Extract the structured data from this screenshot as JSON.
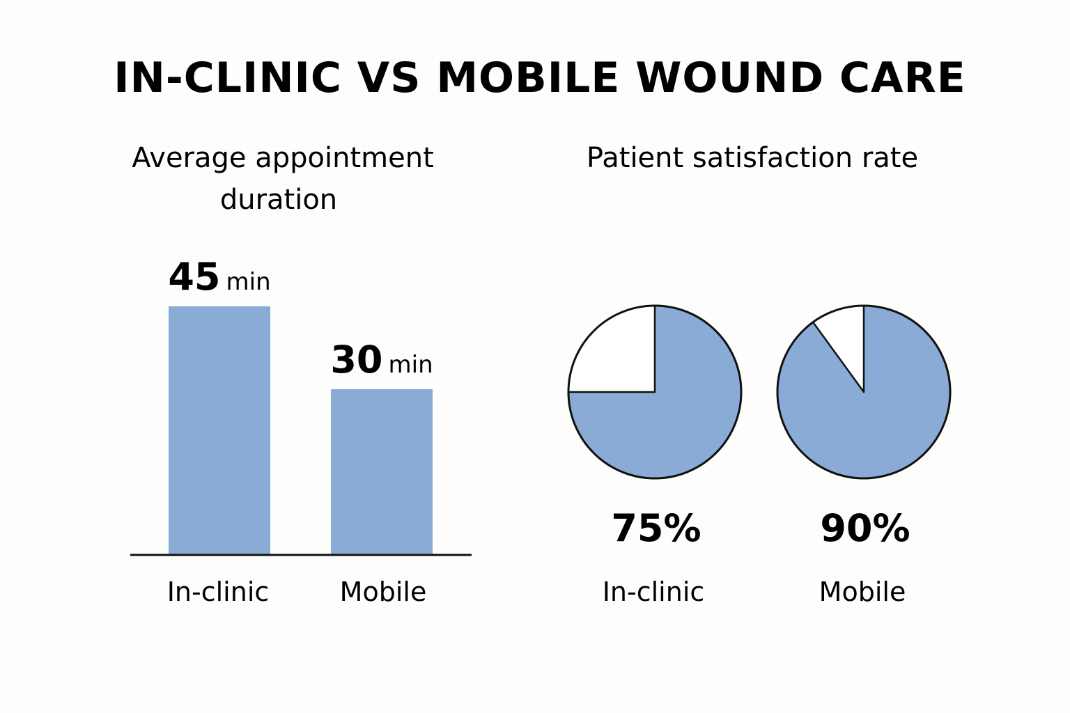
{
  "title": "IN-CLINIC VS MOBILE WOUND CARE",
  "colors": {
    "fill": "#89abd6",
    "outline": "#111111",
    "background": "#fdfdfb"
  },
  "chart_data": [
    {
      "type": "bar",
      "title_lines": [
        "Average appointment",
        "duration"
      ],
      "categories": [
        "In-clinic",
        "Mobile"
      ],
      "values": [
        45,
        30
      ],
      "unit": "min",
      "ylim": [
        0,
        45
      ],
      "grid": false
    },
    {
      "type": "pie",
      "title": "Patient satisfaction rate",
      "charts": [
        {
          "label": "In-clinic",
          "value": 75,
          "display": "75%"
        },
        {
          "label": "Mobile",
          "value": 90,
          "display": "90%"
        }
      ]
    }
  ]
}
